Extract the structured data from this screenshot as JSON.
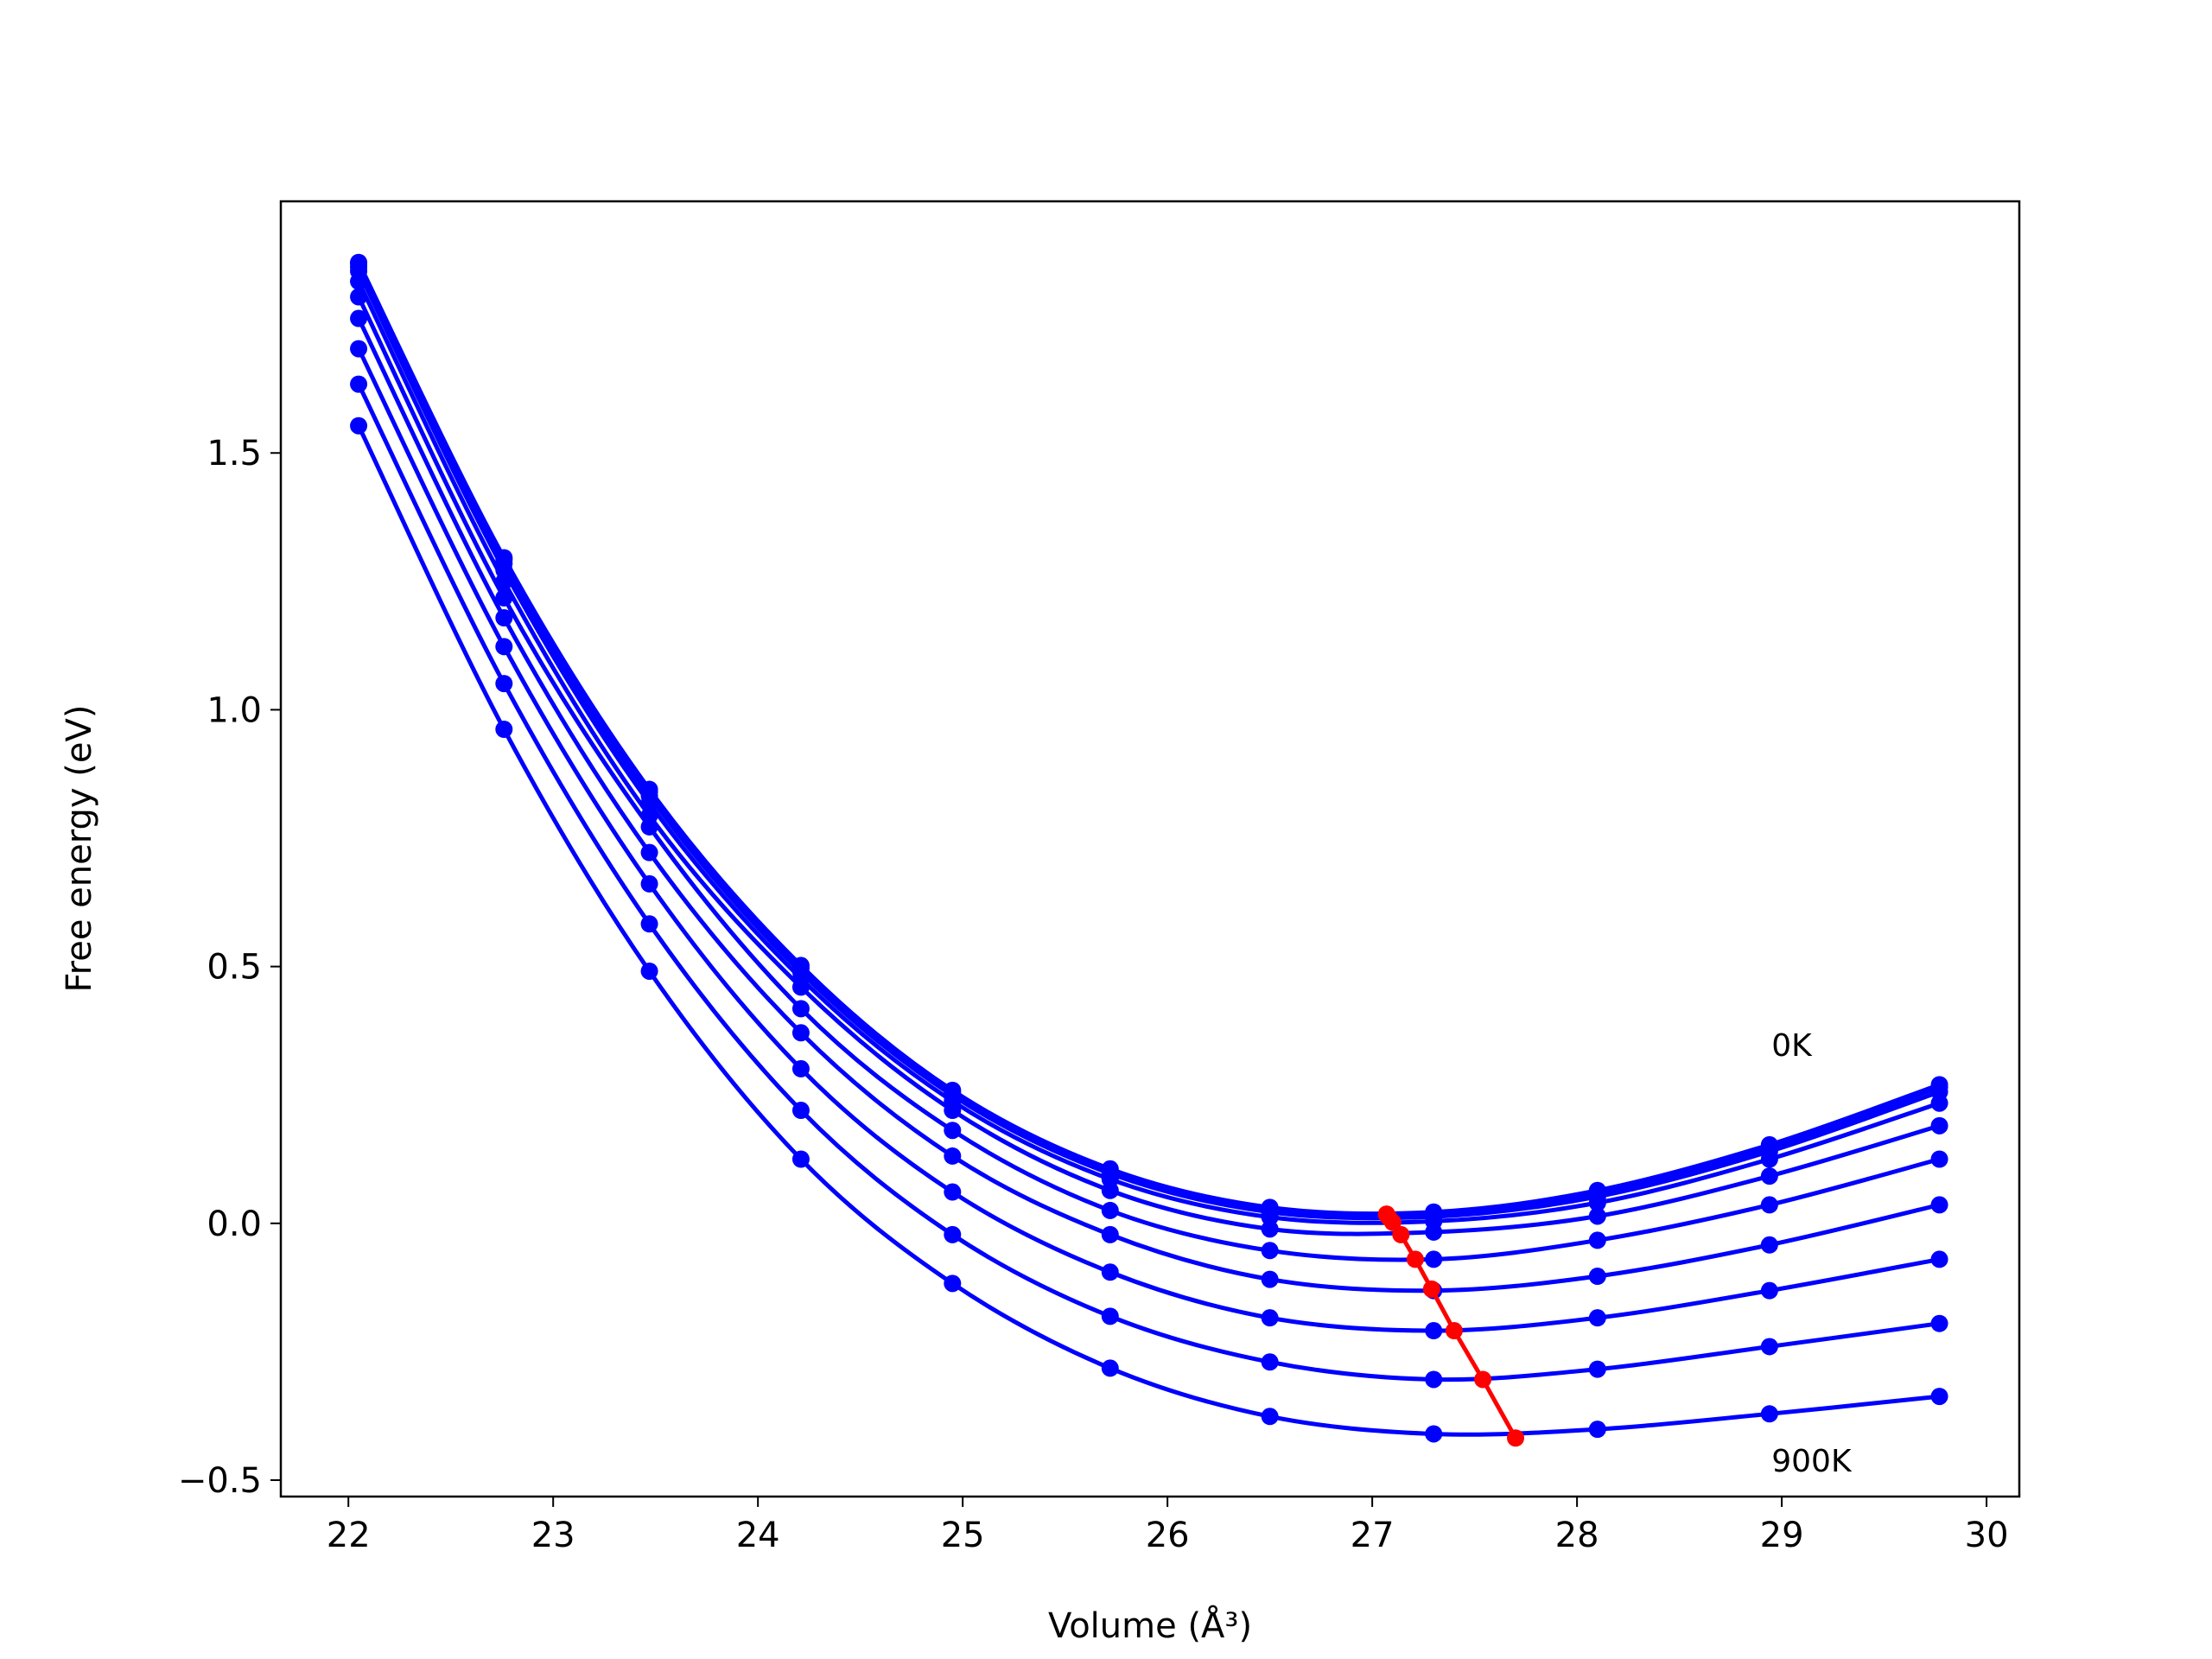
{
  "chart_data": {
    "type": "line",
    "xlabel": "Volume (Å³)",
    "ylabel": "Free energy (eV)",
    "x": [
      22.05,
      22.76,
      23.47,
      24.21,
      24.95,
      25.72,
      26.5,
      27.3,
      28.1,
      28.94,
      29.77
    ],
    "series": [
      {
        "color": "#0000ff",
        "values": [
          1.871,
          1.296,
          0.845,
          0.502,
          0.259,
          0.106,
          0.031,
          0.022,
          0.064,
          0.153,
          0.27
        ]
      },
      {
        "color": "#0000ff",
        "values": [
          1.868,
          1.292,
          0.84,
          0.497,
          0.255,
          0.103,
          0.028,
          0.019,
          0.06,
          0.147,
          0.265
        ]
      },
      {
        "color": "#0000ff",
        "values": [
          1.862,
          1.285,
          0.832,
          0.489,
          0.249,
          0.097,
          0.022,
          0.013,
          0.052,
          0.14,
          0.256
        ]
      },
      {
        "color": "#0000ff",
        "values": [
          1.854,
          1.272,
          0.818,
          0.477,
          0.238,
          0.086,
          0.012,
          0.004,
          0.04,
          0.125,
          0.234
        ]
      },
      {
        "color": "#0000ff",
        "values": [
          1.834,
          1.25,
          0.794,
          0.46,
          0.22,
          0.064,
          -0.011,
          -0.017,
          0.014,
          0.092,
          0.19
        ]
      },
      {
        "color": "#0000ff",
        "values": [
          1.804,
          1.218,
          0.772,
          0.418,
          0.181,
          0.025,
          -0.053,
          -0.07,
          -0.033,
          0.036,
          0.125
        ]
      },
      {
        "color": "#0000ff",
        "values": [
          1.762,
          1.179,
          0.722,
          0.371,
          0.131,
          -0.022,
          -0.109,
          -0.131,
          -0.103,
          -0.042,
          0.036
        ]
      },
      {
        "color": "#0000ff",
        "values": [
          1.703,
          1.123,
          0.661,
          0.301,
          0.061,
          -0.095,
          -0.184,
          -0.209,
          -0.184,
          -0.131,
          -0.07
        ]
      },
      {
        "color": "#0000ff",
        "values": [
          1.634,
          1.051,
          0.583,
          0.22,
          -0.022,
          -0.181,
          -0.27,
          -0.304,
          -0.284,
          -0.24,
          -0.195
        ]
      },
      {
        "color": "#0000ff",
        "values": [
          1.553,
          0.962,
          0.491,
          0.125,
          -0.117,
          -0.282,
          -0.376,
          -0.41,
          -0.401,
          -0.371,
          -0.337
        ]
      },
      {
        "color": "#ff0000",
        "x": [
          27.07,
          27.07,
          27.08,
          27.1,
          27.14,
          27.21,
          27.29,
          27.4,
          27.54,
          27.7
        ],
        "values": [
          0.018,
          0.017,
          0.012,
          0.002,
          -0.022,
          -0.07,
          -0.128,
          -0.209,
          -0.304,
          -0.418
        ]
      }
    ],
    "annotations": [
      {
        "text": "0K",
        "x": 28.95,
        "y": 0.346
      },
      {
        "text": "900K",
        "x": 28.95,
        "y": -0.463
      }
    ],
    "xlim": [
      21.67,
      30.16
    ],
    "ylim": [
      -0.532,
      1.99
    ],
    "xticks": [
      22,
      23,
      24,
      25,
      26,
      27,
      28,
      29,
      30
    ],
    "yticks": [
      {
        "value": -0.5,
        "label": "−0.5"
      },
      {
        "value": 0,
        "label": "0.0"
      },
      0.5,
      {
        "value": 1,
        "label": "1.0"
      },
      1.5
    ]
  }
}
